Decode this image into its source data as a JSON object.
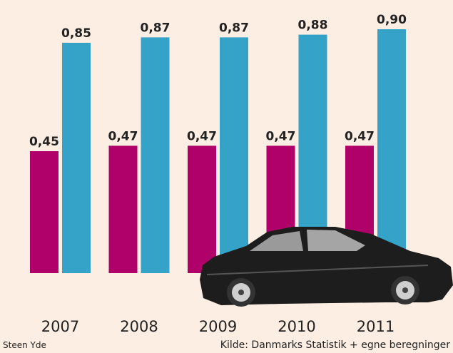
{
  "chart_data": {
    "type": "bar",
    "categories": [
      "2007",
      "2008",
      "2009",
      "2010",
      "2011"
    ],
    "series": [
      {
        "color": "#b0006a",
        "values": [
          0.45,
          0.47,
          0.47,
          0.47,
          0.47
        ],
        "value_labels": [
          "0,45",
          "0,47",
          "0,47",
          "0,47",
          "0,47"
        ]
      },
      {
        "color": "#35a2c8",
        "values": [
          0.85,
          0.87,
          0.87,
          0.88,
          0.9
        ],
        "value_labels": [
          "0,85",
          "0,87",
          "0,87",
          "0,88",
          "0,90"
        ]
      }
    ],
    "credit": "Steen Yde",
    "source": "Kilde: Danmarks Statistik + egne beregninger"
  }
}
